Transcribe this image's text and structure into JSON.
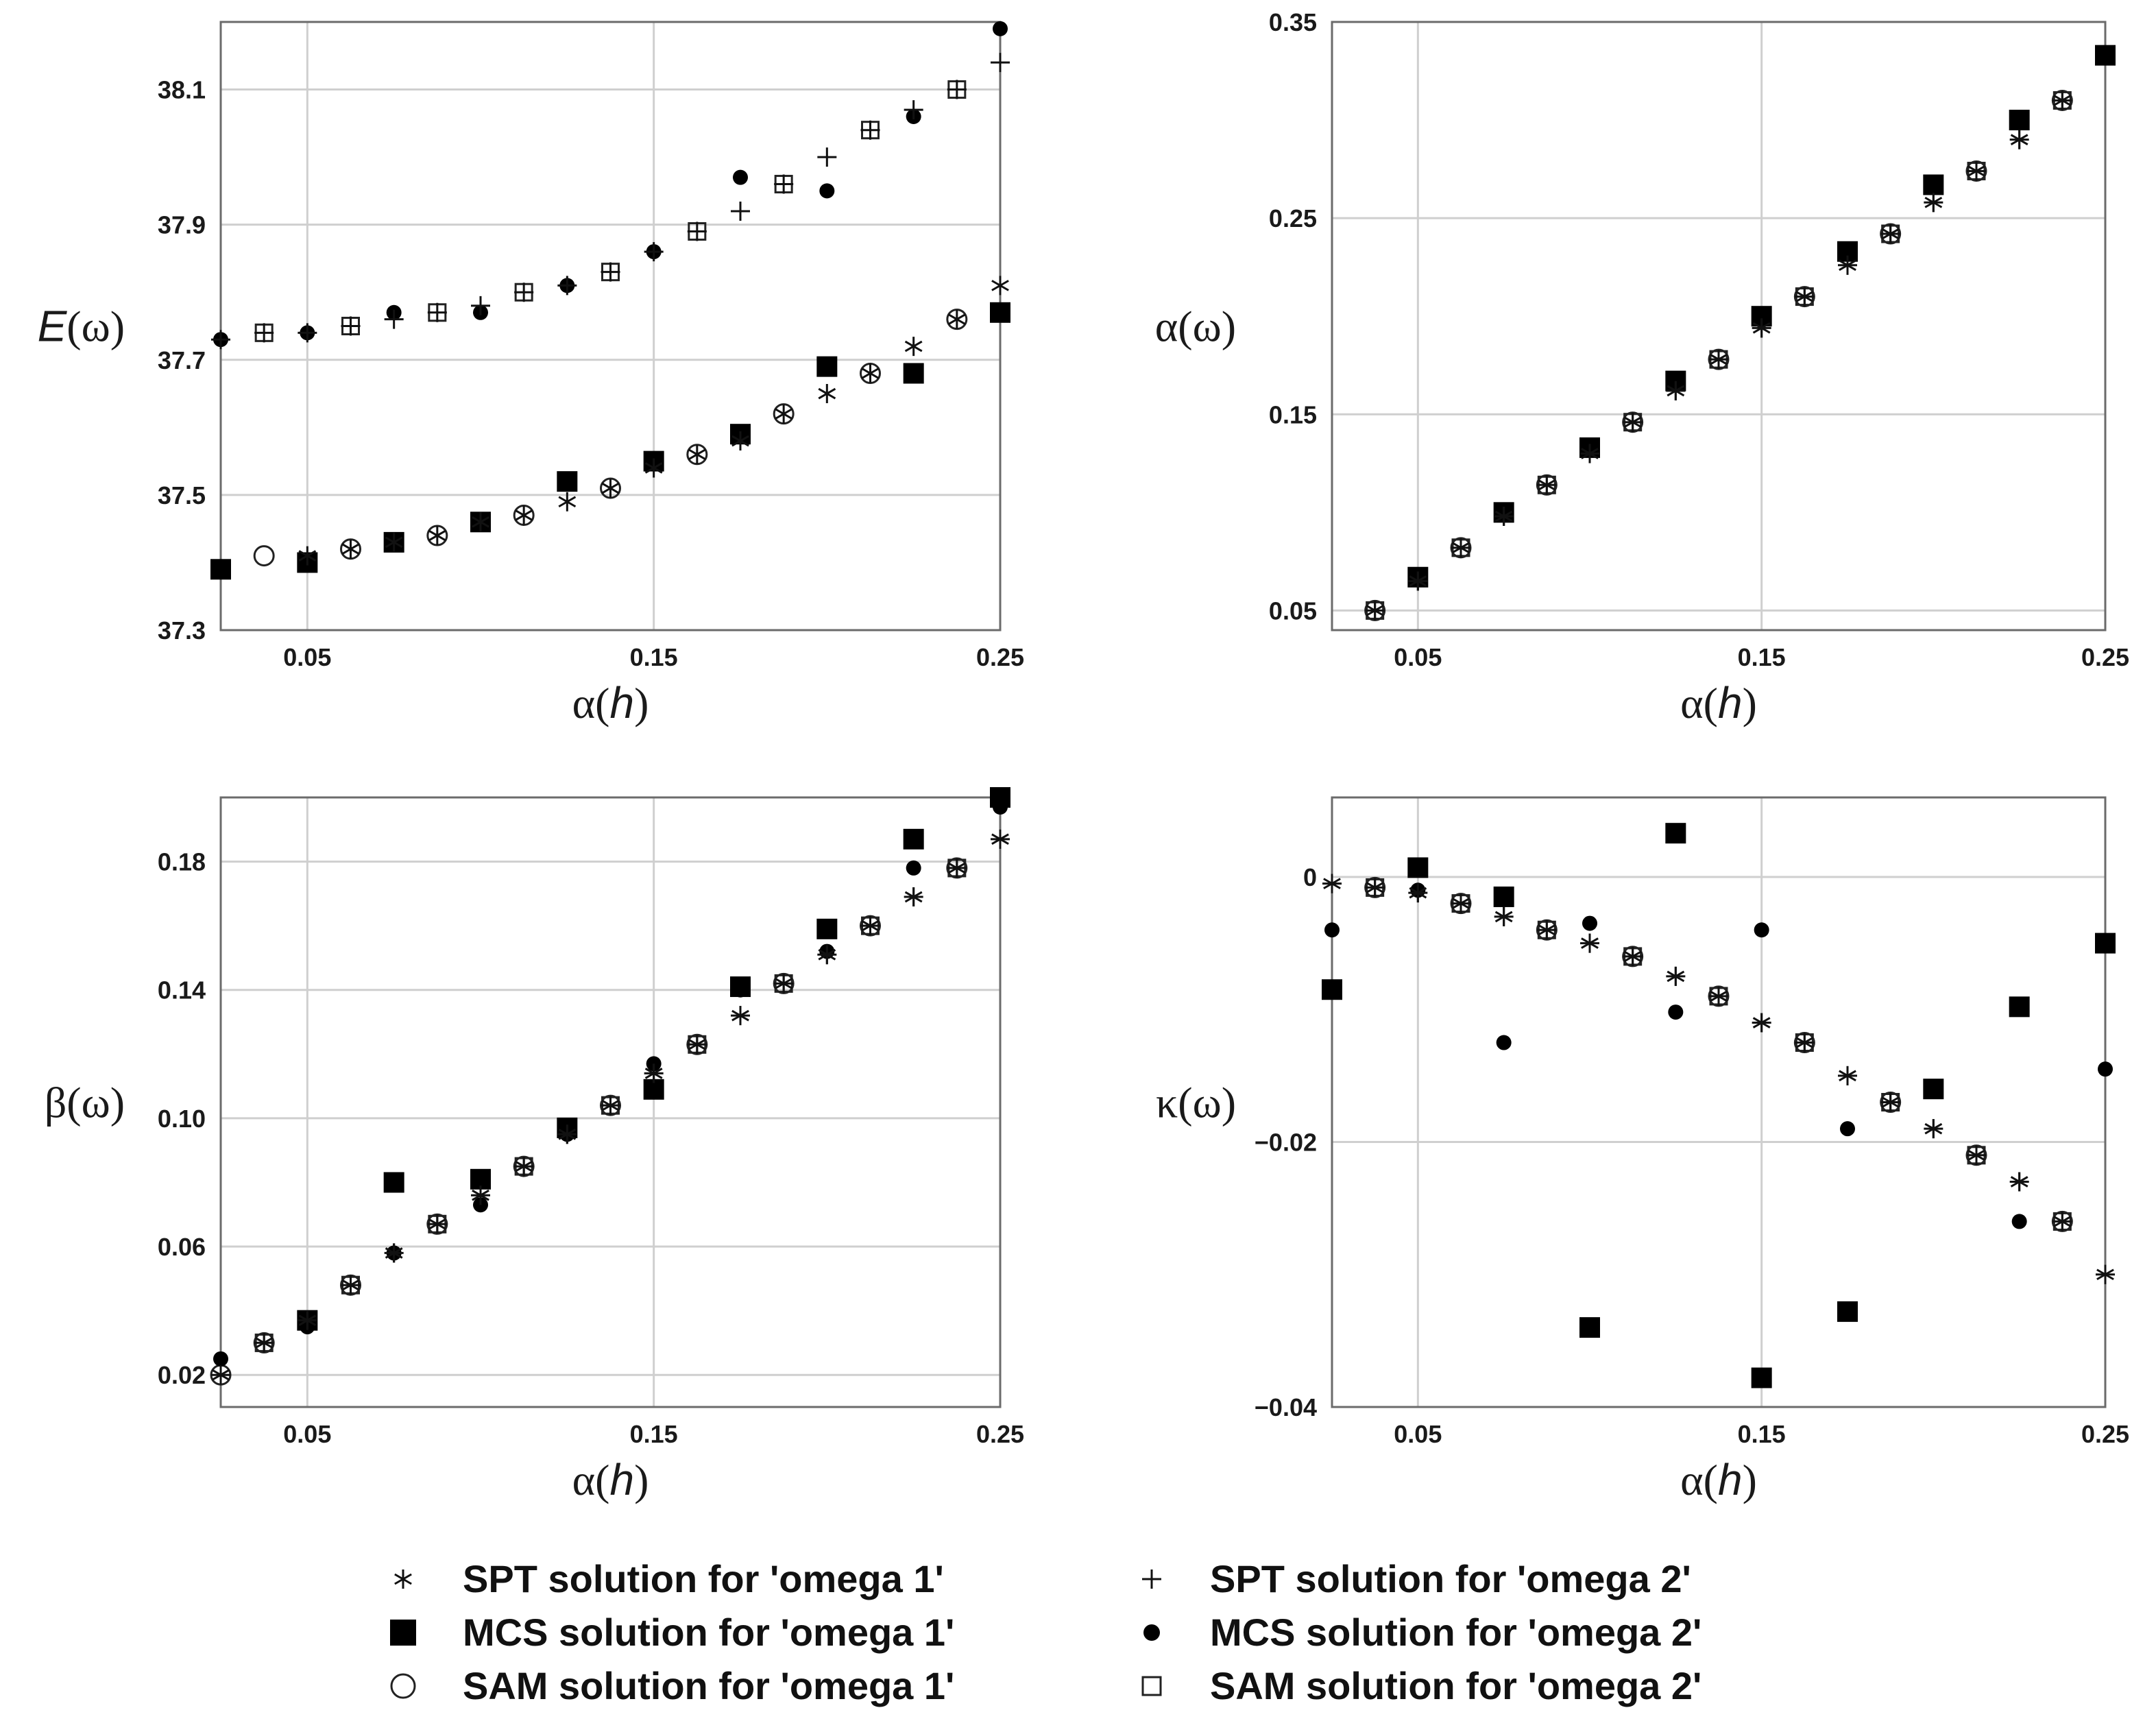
{
  "figure": {
    "legend": [
      {
        "symbol": "star",
        "label": "SPT solution for 'omega 1'"
      },
      {
        "symbol": "plus",
        "label": "SPT solution for 'omega 2'"
      },
      {
        "symbol": "square",
        "label": "MCS solution for 'omega 1'"
      },
      {
        "symbol": "dot",
        "label": "MCS solution for 'omega 2'"
      },
      {
        "symbol": "circle",
        "label": "SAM solution for 'omega 1'"
      },
      {
        "symbol": "open-square",
        "label": "SAM solution for 'omega 2'"
      }
    ]
  },
  "chart_data": [
    {
      "id": "E",
      "type": "scatter",
      "ylabel": "E(ω)",
      "ylabel_symbol": "E",
      "ylabel_arg": "(ω)",
      "xlabel": "α(h)",
      "xlabel_symbol": "α",
      "xlabel_arg": "(h)",
      "xlim": [
        0.025,
        0.25
      ],
      "ylim": [
        37.3,
        38.2
      ],
      "xticks": [
        0.05,
        0.15,
        0.25
      ],
      "xtick_labels": [
        "0.05",
        "0.15",
        "0.25"
      ],
      "yticks": [
        37.3,
        37.5,
        37.7,
        37.9,
        38.1
      ],
      "ytick_labels": [
        "37.3",
        "37.5",
        "37.7",
        "37.9",
        "38.1"
      ],
      "grid": true,
      "series": [
        {
          "name": "SPT solution for 'omega 1'",
          "marker": "star",
          "x": [
            0.05,
            0.0625,
            0.075,
            0.0875,
            0.1,
            0.1125,
            0.125,
            0.1375,
            0.15,
            0.1625,
            0.175,
            0.1875,
            0.2,
            0.2125,
            0.225,
            0.2375,
            0.25
          ],
          "y": [
            37.41,
            37.42,
            37.43,
            37.44,
            37.46,
            37.47,
            37.49,
            37.51,
            37.54,
            37.56,
            37.58,
            37.62,
            37.65,
            37.68,
            37.72,
            37.76,
            37.81
          ]
        },
        {
          "name": "SPT solution for 'omega 2'",
          "marker": "plus",
          "x": [
            0.025,
            0.0375,
            0.05,
            0.0625,
            0.075,
            0.0875,
            0.1,
            0.1125,
            0.125,
            0.1375,
            0.15,
            0.1625,
            0.175,
            0.1875,
            0.2,
            0.2125,
            0.225,
            0.2375,
            0.25
          ],
          "y": [
            37.73,
            37.74,
            37.74,
            37.75,
            37.76,
            37.77,
            37.78,
            37.8,
            37.81,
            37.83,
            37.86,
            37.89,
            37.92,
            37.96,
            38.0,
            38.04,
            38.07,
            38.1,
            38.14
          ]
        },
        {
          "name": "MCS solution for 'omega 1'",
          "marker": "square",
          "x": [
            0.025,
            0.05,
            0.075,
            0.1,
            0.125,
            0.15,
            0.175,
            0.2,
            0.225,
            0.25
          ],
          "y": [
            37.39,
            37.4,
            37.43,
            37.46,
            37.52,
            37.55,
            37.59,
            37.69,
            37.68,
            37.77
          ]
        },
        {
          "name": "MCS solution for 'omega 2'",
          "marker": "dot",
          "x": [
            0.025,
            0.05,
            0.075,
            0.1,
            0.125,
            0.15,
            0.175,
            0.2,
            0.225,
            0.25
          ],
          "y": [
            37.73,
            37.74,
            37.77,
            37.77,
            37.81,
            37.86,
            37.97,
            37.95,
            38.06,
            38.19
          ]
        },
        {
          "name": "SAM solution for 'omega 1'",
          "marker": "circle",
          "x": [
            0.0375,
            0.0625,
            0.0875,
            0.1125,
            0.1375,
            0.1625,
            0.1875,
            0.2125,
            0.2375
          ],
          "y": [
            37.41,
            37.42,
            37.44,
            37.47,
            37.51,
            37.56,
            37.62,
            37.68,
            37.76
          ]
        },
        {
          "name": "SAM solution for 'omega 2'",
          "marker": "open-square",
          "x": [
            0.0375,
            0.0625,
            0.0875,
            0.1125,
            0.1375,
            0.1625,
            0.1875,
            0.2125,
            0.2375
          ],
          "y": [
            37.74,
            37.75,
            37.77,
            37.8,
            37.83,
            37.89,
            37.96,
            38.04,
            38.1
          ]
        }
      ]
    },
    {
      "id": "alpha",
      "type": "scatter",
      "ylabel": "α(ω)",
      "ylabel_symbol": "α",
      "ylabel_arg": "(ω)",
      "xlabel": "α(h)",
      "xlabel_symbol": "α",
      "xlabel_arg": "(h)",
      "xlim": [
        0.025,
        0.25
      ],
      "ylim": [
        0.04,
        0.35
      ],
      "xticks": [
        0.05,
        0.15,
        0.25
      ],
      "xtick_labels": [
        "0.05",
        "0.15",
        "0.25"
      ],
      "yticks": [
        0.05,
        0.15,
        0.25,
        0.35
      ],
      "ytick_labels": [
        "0.05",
        "0.15",
        "0.25",
        "0.35"
      ],
      "grid": true,
      "series": [
        {
          "name": "SPT solution for 'omega 1'",
          "marker": "star",
          "x": [
            0.0375,
            0.05,
            0.0625,
            0.075,
            0.0875,
            0.1,
            0.1125,
            0.125,
            0.1375,
            0.15,
            0.1625,
            0.175,
            0.1875,
            0.2,
            0.2125,
            0.225,
            0.2375
          ],
          "y": [
            0.05,
            0.065,
            0.082,
            0.098,
            0.114,
            0.13,
            0.146,
            0.162,
            0.178,
            0.194,
            0.21,
            0.226,
            0.242,
            0.258,
            0.274,
            0.29,
            0.31
          ]
        },
        {
          "name": "SPT solution for 'omega 2'",
          "marker": "plus",
          "x": [
            0.0375,
            0.05,
            0.0625,
            0.075,
            0.0875,
            0.1,
            0.1125,
            0.125,
            0.1375,
            0.15,
            0.1625,
            0.175,
            0.1875,
            0.2,
            0.2125,
            0.225,
            0.2375
          ],
          "y": [
            0.05,
            0.065,
            0.082,
            0.098,
            0.114,
            0.13,
            0.146,
            0.162,
            0.178,
            0.194,
            0.21,
            0.226,
            0.242,
            0.258,
            0.274,
            0.29,
            0.31
          ]
        },
        {
          "name": "MCS solution for 'omega 1'",
          "marker": "square",
          "x": [
            0.05,
            0.075,
            0.1,
            0.125,
            0.15,
            0.175,
            0.2,
            0.225,
            0.25
          ],
          "y": [
            0.067,
            0.1,
            0.133,
            0.167,
            0.2,
            0.233,
            0.267,
            0.3,
            0.333
          ]
        },
        {
          "name": "MCS solution for 'omega 2'",
          "marker": "dot",
          "x": [
            0.05,
            0.075,
            0.1,
            0.125,
            0.15,
            0.175,
            0.2,
            0.225,
            0.25
          ],
          "y": [
            0.066,
            0.099,
            0.132,
            0.166,
            0.199,
            0.232,
            0.266,
            0.299,
            0.332
          ]
        },
        {
          "name": "SAM solution for 'omega 1'",
          "marker": "circle",
          "x": [
            0.0375,
            0.0625,
            0.0875,
            0.1125,
            0.1375,
            0.1625,
            0.1875,
            0.2125,
            0.2375
          ],
          "y": [
            0.05,
            0.082,
            0.114,
            0.146,
            0.178,
            0.21,
            0.242,
            0.274,
            0.31
          ]
        },
        {
          "name": "SAM solution for 'omega 2'",
          "marker": "open-square",
          "x": [
            0.0375,
            0.0625,
            0.0875,
            0.1125,
            0.1375,
            0.1625,
            0.1875,
            0.2125,
            0.2375
          ],
          "y": [
            0.05,
            0.082,
            0.114,
            0.146,
            0.178,
            0.21,
            0.242,
            0.274,
            0.31
          ]
        }
      ]
    },
    {
      "id": "beta",
      "type": "scatter",
      "ylabel": "β(ω)",
      "ylabel_symbol": "β",
      "ylabel_arg": "(ω)",
      "xlabel": "α(h)",
      "xlabel_symbol": "α",
      "xlabel_arg": "(h)",
      "xlim": [
        0.025,
        0.25
      ],
      "ylim": [
        0.01,
        0.2
      ],
      "xticks": [
        0.05,
        0.15,
        0.25
      ],
      "xtick_labels": [
        "0.05",
        "0.15",
        "0.25"
      ],
      "yticks": [
        0.02,
        0.06,
        0.1,
        0.14,
        0.18
      ],
      "ytick_labels": [
        "0.02",
        "0.06",
        "0.10",
        "0.14",
        "0.18"
      ],
      "grid": true,
      "series": [
        {
          "name": "SPT solution for 'omega 1'",
          "marker": "star",
          "x": [
            0.025,
            0.0375,
            0.05,
            0.0625,
            0.075,
            0.0875,
            0.1,
            0.1125,
            0.125,
            0.1375,
            0.15,
            0.1625,
            0.175,
            0.1875,
            0.2,
            0.2125,
            0.225,
            0.2375,
            0.25
          ],
          "y": [
            0.02,
            0.03,
            0.037,
            0.048,
            0.058,
            0.067,
            0.076,
            0.085,
            0.095,
            0.104,
            0.114,
            0.123,
            0.132,
            0.142,
            0.151,
            0.16,
            0.169,
            0.178,
            0.187
          ]
        },
        {
          "name": "SPT solution for 'omega 2'",
          "marker": "plus",
          "x": [
            0.025,
            0.0375,
            0.05,
            0.0625,
            0.075,
            0.0875,
            0.1,
            0.1125,
            0.125,
            0.1375,
            0.15,
            0.1625,
            0.175,
            0.1875,
            0.2,
            0.2125,
            0.225,
            0.2375,
            0.25
          ],
          "y": [
            0.02,
            0.03,
            0.037,
            0.048,
            0.058,
            0.067,
            0.076,
            0.085,
            0.095,
            0.104,
            0.114,
            0.123,
            0.132,
            0.142,
            0.151,
            0.16,
            0.169,
            0.178,
            0.187
          ]
        },
        {
          "name": "MCS solution for 'omega 1'",
          "marker": "square",
          "x": [
            0.05,
            0.075,
            0.1,
            0.125,
            0.15,
            0.175,
            0.2,
            0.225,
            0.25
          ],
          "y": [
            0.037,
            0.08,
            0.081,
            0.097,
            0.109,
            0.141,
            0.159,
            0.187,
            0.2
          ]
        },
        {
          "name": "MCS solution for 'omega 2'",
          "marker": "dot",
          "x": [
            0.025,
            0.05,
            0.075,
            0.1,
            0.125,
            0.15,
            0.175,
            0.2,
            0.225,
            0.25
          ],
          "y": [
            0.025,
            0.035,
            0.058,
            0.073,
            0.095,
            0.117,
            0.14,
            0.152,
            0.178,
            0.197
          ]
        },
        {
          "name": "SAM solution for 'omega 1'",
          "marker": "circle",
          "x": [
            0.025,
            0.0375,
            0.0625,
            0.0875,
            0.1125,
            0.1375,
            0.1625,
            0.1875,
            0.2125,
            0.2375
          ],
          "y": [
            0.02,
            0.03,
            0.048,
            0.067,
            0.085,
            0.104,
            0.123,
            0.142,
            0.16,
            0.178
          ]
        },
        {
          "name": "SAM solution for 'omega 2'",
          "marker": "open-square",
          "x": [
            0.0375,
            0.0625,
            0.0875,
            0.1125,
            0.1375,
            0.1625,
            0.1875,
            0.2125,
            0.2375
          ],
          "y": [
            0.03,
            0.048,
            0.067,
            0.085,
            0.104,
            0.123,
            0.142,
            0.16,
            0.178
          ]
        }
      ]
    },
    {
      "id": "kappa",
      "type": "scatter",
      "ylabel": "κ(ω)",
      "ylabel_symbol": "κ",
      "ylabel_arg": "(ω)",
      "xlabel": "α(h)",
      "xlabel_symbol": "α",
      "xlabel_arg": "(h)",
      "xlim": [
        0.025,
        0.25
      ],
      "ylim": [
        -0.04,
        0.006
      ],
      "xticks": [
        0.05,
        0.15,
        0.25
      ],
      "xtick_labels": [
        "0.05",
        "0.15",
        "0.25"
      ],
      "yticks": [
        0,
        -0.02,
        -0.04
      ],
      "ytick_labels": [
        "0",
        "−0.02",
        "−0.04"
      ],
      "grid": true,
      "series": [
        {
          "name": "SPT solution for 'omega 1'",
          "marker": "star",
          "x": [
            0.025,
            0.0375,
            0.05,
            0.0625,
            0.075,
            0.0875,
            0.1,
            0.1125,
            0.125,
            0.1375,
            0.15,
            0.1625,
            0.175,
            0.1875,
            0.2,
            0.2125,
            0.225,
            0.2375,
            0.25
          ],
          "y": [
            -0.0005,
            -0.0008,
            -0.0012,
            -0.002,
            -0.003,
            -0.004,
            -0.005,
            -0.006,
            -0.0075,
            -0.009,
            -0.011,
            -0.0125,
            -0.015,
            -0.017,
            -0.019,
            -0.021,
            -0.023,
            -0.026,
            -0.03
          ]
        },
        {
          "name": "SPT solution for 'omega 2'",
          "marker": "plus",
          "x": [
            0.025,
            0.0375,
            0.05,
            0.0625,
            0.075,
            0.0875,
            0.1,
            0.1125,
            0.125,
            0.1375,
            0.15,
            0.1625,
            0.175,
            0.1875,
            0.2,
            0.2125,
            0.225,
            0.2375,
            0.25
          ],
          "y": [
            -0.0005,
            -0.0008,
            -0.0012,
            -0.002,
            -0.003,
            -0.004,
            -0.005,
            -0.006,
            -0.0075,
            -0.009,
            -0.011,
            -0.0125,
            -0.015,
            -0.017,
            -0.019,
            -0.021,
            -0.023,
            -0.026,
            -0.03
          ]
        },
        {
          "name": "MCS solution for 'omega 1'",
          "marker": "square",
          "x": [
            0.025,
            0.05,
            0.075,
            0.1,
            0.125,
            0.15,
            0.175,
            0.2,
            0.225,
            0.25
          ],
          "y": [
            -0.0085,
            0.0007,
            -0.0015,
            -0.034,
            0.0033,
            -0.0378,
            -0.0328,
            -0.016,
            -0.0098,
            -0.005
          ]
        },
        {
          "name": "MCS solution for 'omega 2'",
          "marker": "dot",
          "x": [
            0.025,
            0.05,
            0.075,
            0.1,
            0.125,
            0.15,
            0.175,
            0.2,
            0.225,
            0.25
          ],
          "y": [
            -0.004,
            -0.001,
            -0.0125,
            -0.0035,
            -0.0102,
            -0.004,
            -0.019,
            -0.016,
            -0.026,
            -0.0145
          ]
        },
        {
          "name": "SAM solution for 'omega 1'",
          "marker": "circle",
          "x": [
            0.0375,
            0.0625,
            0.0875,
            0.1125,
            0.1375,
            0.1625,
            0.1875,
            0.2125,
            0.2375
          ],
          "y": [
            -0.0008,
            -0.002,
            -0.004,
            -0.006,
            -0.009,
            -0.0125,
            -0.017,
            -0.021,
            -0.026
          ]
        },
        {
          "name": "SAM solution for 'omega 2'",
          "marker": "open-square",
          "x": [
            0.0375,
            0.0625,
            0.0875,
            0.1125,
            0.1375,
            0.1625,
            0.1875,
            0.2125,
            0.2375
          ],
          "y": [
            -0.0008,
            -0.002,
            -0.004,
            -0.006,
            -0.009,
            -0.0125,
            -0.017,
            -0.021,
            -0.026
          ]
        }
      ]
    }
  ]
}
